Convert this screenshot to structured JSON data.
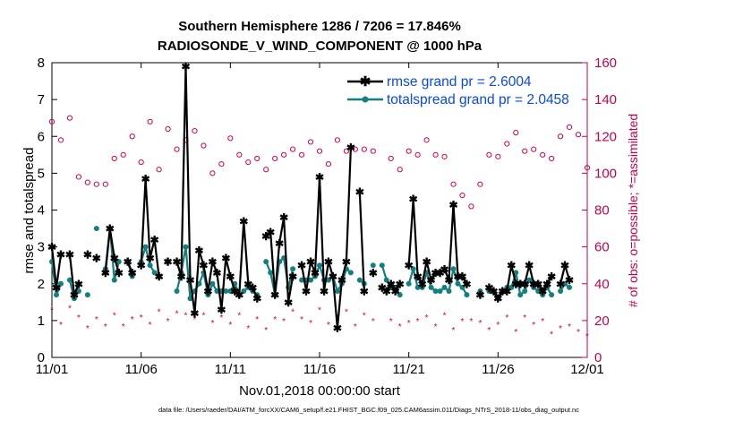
{
  "colors": {
    "rmse": "#000000",
    "spread": "#13807e",
    "obs": "#d2004f",
    "legend_text": "#0a48f0",
    "axis_right": "#c8004b"
  },
  "chart_data": {
    "type": "line",
    "title": [
      "Southern Hemisphere 1286 / 7206 = 17.846%",
      "RADIOSONDE_V_WIND_COMPONENT @ 1000 hPa"
    ],
    "xlabel": "Nov.01,2018 00:00:00 start",
    "ylabel": "rmse and totalspread",
    "y2label": "# of obs: o=possible; *=assimilated",
    "xlim": [
      0,
      30
    ],
    "ylim": [
      0,
      8
    ],
    "y2lim": [
      0,
      160
    ],
    "xticks": [
      0,
      5,
      10,
      15,
      20,
      25,
      30
    ],
    "xtick_labels": [
      "11/01",
      "11/06",
      "11/11",
      "11/16",
      "11/21",
      "11/26",
      "12/01"
    ],
    "yticks": [
      0,
      1,
      2,
      3,
      4,
      5,
      6,
      7,
      8
    ],
    "y2ticks": [
      0,
      20,
      40,
      60,
      80,
      100,
      120,
      140,
      160
    ],
    "legend": [
      {
        "label": "rmse grand pr = 2.6004",
        "series": "rmse"
      },
      {
        "label": "totalspread grand pr = 2.0458",
        "series": "totalspread"
      }
    ],
    "footer": "data file: /Users/raeder/DAI/ATM_forcXX/CAM6_setup/f.e21.FHIST_BGC.f09_025.CAM6assim.011/Diags_NTrS_2018-11/obs_diag_output.nc",
    "series": [
      {
        "name": "rmse",
        "x": [
          0,
          0.25,
          0.5,
          1,
          1.25,
          1.5,
          2,
          2.5,
          3,
          3.25,
          3.5,
          3.75,
          4.25,
          4.5,
          5,
          5.25,
          5.5,
          5.75,
          6,
          6.5,
          7,
          7.25,
          7.5,
          7.75,
          8,
          8.25,
          8.5,
          8.75,
          9,
          9.25,
          9.5,
          9.75,
          10,
          10.25,
          10.5,
          10.75,
          11,
          11.25,
          11.5,
          12,
          12.25,
          12.5,
          12.75,
          13,
          13.25,
          13.5,
          14,
          14.25,
          14.5,
          14.75,
          15,
          15.25,
          15.5,
          15.75,
          16,
          16.25,
          16.5,
          16.75,
          17.25,
          17.5,
          18,
          18.5,
          18.75,
          19,
          19.25,
          19.5,
          20,
          20.25,
          20.5,
          20.75,
          21,
          21.25,
          21.5,
          21.75,
          22,
          22.25,
          22.5,
          22.75,
          23,
          23.25,
          24,
          24.5,
          24.75,
          25,
          25.25,
          25.5,
          25.75,
          26,
          26.25,
          26.5,
          26.75,
          27,
          27.25,
          27.5,
          27.75,
          28,
          28.5,
          28.75,
          29
        ],
        "y": [
          3.0,
          1.9,
          2.8,
          2.8,
          1.7,
          2.0,
          2.8,
          2.7,
          2.3,
          3.5,
          2.7,
          2.3,
          2.6,
          2.3,
          2.5,
          4.85,
          2.7,
          3.2,
          2.2,
          2.6,
          2.6,
          2.2,
          7.9,
          2.1,
          1.2,
          2.9,
          2.5,
          1.8,
          2.6,
          2.3,
          1.3,
          2.7,
          2.2,
          1.8,
          1.7,
          3.7,
          2.0,
          1.9,
          1.6,
          3.3,
          3.4,
          1.7,
          3.1,
          3.8,
          1.5,
          2.2,
          2.5,
          1.8,
          2.6,
          2.3,
          4.9,
          1.8,
          2.6,
          2.2,
          0.8,
          2.1,
          2.6,
          5.7,
          4.5,
          1.8,
          2.3,
          1.9,
          1.8,
          2.0,
          1.8,
          2.0,
          2.5,
          4.3,
          2.2,
          2.0,
          2.6,
          2.1,
          2.3,
          2.3,
          2.4,
          2.1,
          4.15,
          2.2,
          2.2,
          2.0,
          1.7,
          1.9,
          1.8,
          1.6,
          1.8,
          1.8,
          2.5,
          2.0,
          2.0,
          2.0,
          2.5,
          2.0,
          2.0,
          1.8,
          2.0,
          2.2,
          2.0,
          2.5,
          2.1
        ]
      },
      {
        "name": "totalspread",
        "x": [
          0,
          0.25,
          0.5,
          1,
          1.25,
          1.5,
          2,
          2.5,
          3,
          3.25,
          3.5,
          3.75,
          4.25,
          4.5,
          5,
          5.25,
          5.5,
          5.75,
          6,
          6.5,
          7,
          7.25,
          7.5,
          7.75,
          8,
          8.25,
          8.5,
          8.75,
          9,
          9.25,
          9.5,
          9.75,
          10,
          10.25,
          10.5,
          10.75,
          11,
          11.25,
          11.5,
          12,
          12.25,
          12.5,
          12.75,
          13,
          13.25,
          13.5,
          14,
          14.25,
          14.5,
          14.75,
          15,
          15.25,
          15.5,
          15.75,
          16,
          16.25,
          16.5,
          16.75,
          17.25,
          17.5,
          18,
          18.5,
          18.75,
          19,
          19.25,
          19.5,
          20,
          20.25,
          20.5,
          20.75,
          21,
          21.25,
          21.5,
          21.75,
          22,
          22.25,
          22.5,
          22.75,
          23,
          23.25,
          24,
          24.5,
          24.75,
          25,
          25.25,
          25.5,
          25.75,
          26,
          26.25,
          26.5,
          26.75,
          27,
          27.25,
          27.5,
          27.75,
          28,
          28.5,
          28.75,
          29
        ],
        "y": [
          2.6,
          1.7,
          2.0,
          2.1,
          1.6,
          1.8,
          1.7,
          3.5,
          2.4,
          3.5,
          2.1,
          2.6,
          2.6,
          2.2,
          2.6,
          3.0,
          2.5,
          2.3,
          2.2,
          2.6,
          1.8,
          2.3,
          3.0,
          1.6,
          1.8,
          2.0,
          2.3,
          1.7,
          2.0,
          1.8,
          1.8,
          1.8,
          1.8,
          2.0,
          1.7,
          1.8,
          1.9,
          1.8,
          1.7,
          2.6,
          2.3,
          1.7,
          2.6,
          2.7,
          1.9,
          2.4,
          2.1,
          2.1,
          2.1,
          2.2,
          2.5,
          2.1,
          2.1,
          2.2,
          1.8,
          2.0,
          2.4,
          2.3,
          2.1,
          2.0,
          2.5,
          2.5,
          2.1,
          1.9,
          1.9,
          1.7,
          2.0,
          2.4,
          1.9,
          1.9,
          2.3,
          1.9,
          1.8,
          1.8,
          1.9,
          1.8,
          2.4,
          2.0,
          1.9,
          1.7,
          1.8,
          1.8,
          1.8,
          1.6,
          1.8,
          1.9,
          1.9,
          2.3,
          1.7,
          1.8,
          2.1,
          1.9,
          1.8,
          1.7,
          1.9,
          1.7,
          1.8,
          2.0,
          1.9
        ]
      },
      {
        "name": "obs_possible",
        "axis": "right",
        "x": [
          0,
          0.5,
          1,
          1.5,
          2,
          2.5,
          3,
          3.5,
          4,
          4.5,
          5,
          5.5,
          6,
          6.5,
          7,
          7.5,
          8,
          8.5,
          9,
          9.5,
          10,
          10.5,
          11,
          11.5,
          12,
          12.5,
          13,
          13.5,
          14,
          14.5,
          15,
          15.5,
          16,
          16.5,
          17,
          17.5,
          18,
          19,
          19.5,
          20,
          20.5,
          21,
          21.5,
          22,
          22.5,
          23,
          23.5,
          24,
          24.5,
          25,
          25.5,
          26,
          26.5,
          27,
          27.5,
          28,
          28.5,
          29,
          29.5,
          30
        ],
        "y": [
          128,
          118,
          130,
          98,
          95,
          94,
          94,
          108,
          110,
          120,
          106,
          128,
          102,
          124,
          113,
          118,
          123,
          115,
          100,
          105,
          119,
          110,
          106,
          108,
          102,
          108,
          110,
          113,
          110,
          117,
          112,
          105,
          118,
          112,
          113,
          113,
          112,
          108,
          102,
          112,
          110,
          118,
          110,
          109,
          94,
          88,
          82,
          94,
          110,
          109,
          116,
          122,
          112,
          113,
          110,
          108,
          120,
          125,
          121,
          103
        ]
      },
      {
        "name": "obs_assimilated",
        "axis": "right",
        "x": [
          0,
          0.5,
          1,
          1.5,
          2,
          2.5,
          3,
          3.5,
          4,
          4.5,
          5,
          5.5,
          6,
          6.5,
          7,
          7.5,
          8,
          8.5,
          9,
          9.5,
          10,
          10.5,
          11,
          11.5,
          12,
          12.5,
          13,
          13.5,
          14,
          14.5,
          15,
          15.5,
          16,
          16.5,
          17,
          17.5,
          18,
          19,
          19.5,
          20,
          20.5,
          21,
          21.5,
          22,
          22.5,
          23,
          23.5,
          24,
          24.5,
          25,
          25.5,
          26,
          26.5,
          27,
          27.5,
          28,
          28.5,
          29,
          29.5,
          30
        ],
        "y": [
          26,
          18,
          27,
          22,
          16,
          21,
          17,
          23,
          17,
          21,
          22,
          18,
          25,
          20,
          24,
          23,
          21,
          23,
          19,
          22,
          18,
          23,
          16,
          21,
          15,
          21,
          20,
          25,
          21,
          19,
          26,
          18,
          22,
          25,
          17,
          23,
          20,
          20,
          17,
          19,
          20,
          22,
          17,
          23,
          15,
          20,
          20,
          19,
          15,
          18,
          22,
          14,
          22,
          18,
          20,
          13,
          16,
          17,
          14,
          12
        ]
      }
    ]
  }
}
